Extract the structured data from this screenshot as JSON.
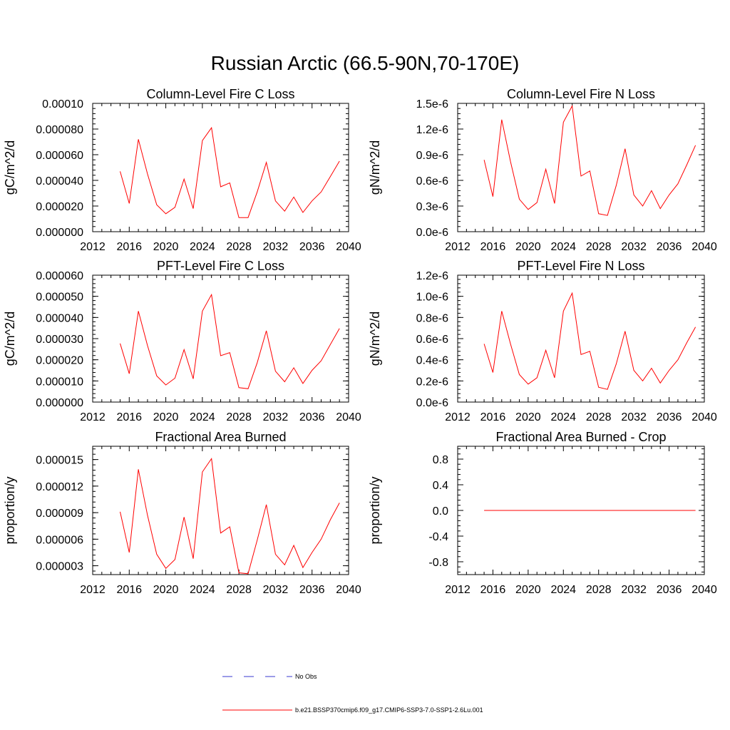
{
  "figure": {
    "title": "Russian Arctic (66.5-90N,70-170E)"
  },
  "legend": {
    "entries": [
      {
        "label": "No Obs",
        "style": "dashed",
        "color": "#3a3ad0"
      },
      {
        "label": "b.e21.BSSP370cmip6.f09_g17.CMIP6-SSP3-7.0-SSP1-2.6Lu.001",
        "style": "solid",
        "color": "#ff0000"
      }
    ]
  },
  "chart_data": [
    {
      "type": "line",
      "title": "Column-Level Fire C Loss",
      "ylabel": "gC/m^2/d",
      "xlim": [
        2012,
        2040
      ],
      "ylim": [
        0,
        0.0001
      ],
      "xticks": [
        "2012",
        "2016",
        "2020",
        "2024",
        "2028",
        "2032",
        "2036",
        "2040"
      ],
      "yticks": [
        {
          "v": 0,
          "label": "0.000000"
        },
        {
          "v": 2e-05,
          "label": "0.000020"
        },
        {
          "v": 4e-05,
          "label": "0.000040"
        },
        {
          "v": 6e-05,
          "label": "0.000060"
        },
        {
          "v": 8e-05,
          "label": "0.000080"
        },
        {
          "v": 0.0001,
          "label": "0.00010"
        }
      ],
      "series": [
        {
          "color": "#ff0000",
          "x": [
            2015,
            2016,
            2017,
            2018,
            2019,
            2020,
            2021,
            2022,
            2023,
            2024,
            2025,
            2026,
            2027,
            2028,
            2029,
            2030,
            2031,
            2032,
            2033,
            2034,
            2035,
            2036,
            2037,
            2038,
            2039
          ],
          "y": [
            4.7e-05,
            2.2e-05,
            7.2e-05,
            4.5e-05,
            2.1e-05,
            1.4e-05,
            1.9e-05,
            4.1e-05,
            1.8e-05,
            7.1e-05,
            8.1e-05,
            3.5e-05,
            3.8e-05,
            1.1e-05,
            1.1e-05,
            3.1e-05,
            5.4e-05,
            2.4e-05,
            1.6e-05,
            2.7e-05,
            1.5e-05,
            2.4e-05,
            3.1e-05,
            4.3e-05,
            5.5e-05
          ]
        }
      ]
    },
    {
      "type": "line",
      "title": "Column-Level Fire N Loss",
      "ylabel": "gN/m^2/d",
      "xlim": [
        2012,
        2040
      ],
      "ylim": [
        0,
        1.5e-06
      ],
      "xticks": [
        "2012",
        "2016",
        "2020",
        "2024",
        "2028",
        "2032",
        "2036",
        "2040"
      ],
      "yticks": [
        {
          "v": 0,
          "label": "0.0e-6"
        },
        {
          "v": 3e-07,
          "label": "0.3e-6"
        },
        {
          "v": 6e-07,
          "label": "0.6e-6"
        },
        {
          "v": 9e-07,
          "label": "0.9e-6"
        },
        {
          "v": 1.2e-06,
          "label": "1.2e-6"
        },
        {
          "v": 1.5e-06,
          "label": "1.5e-6"
        }
      ],
      "series": [
        {
          "color": "#ff0000",
          "x": [
            2015,
            2016,
            2017,
            2018,
            2019,
            2020,
            2021,
            2022,
            2023,
            2024,
            2025,
            2026,
            2027,
            2028,
            2029,
            2030,
            2031,
            2032,
            2033,
            2034,
            2035,
            2036,
            2037,
            2038,
            2039
          ],
          "y": [
            8.4e-07,
            4.1e-07,
            1.31e-06,
            8.2e-07,
            3.8e-07,
            2.6e-07,
            3.4e-07,
            7.3e-07,
            3.3e-07,
            1.28e-06,
            1.47e-06,
            6.5e-07,
            7.1e-07,
            2.1e-07,
            1.9e-07,
            5.4e-07,
            9.7e-07,
            4.3e-07,
            3e-07,
            4.8e-07,
            2.7e-07,
            4.3e-07,
            5.6e-07,
            7.8e-07,
            1.01e-06
          ]
        }
      ]
    },
    {
      "type": "line",
      "title": "PFT-Level Fire C Loss",
      "ylabel": "gC/m^2/d",
      "xlim": [
        2012,
        2040
      ],
      "ylim": [
        0,
        6e-05
      ],
      "xticks": [
        "2012",
        "2016",
        "2020",
        "2024",
        "2028",
        "2032",
        "2036",
        "2040"
      ],
      "yticks": [
        {
          "v": 0,
          "label": "0.000000"
        },
        {
          "v": 1e-05,
          "label": "0.000010"
        },
        {
          "v": 2e-05,
          "label": "0.000020"
        },
        {
          "v": 3e-05,
          "label": "0.000030"
        },
        {
          "v": 4e-05,
          "label": "0.000040"
        },
        {
          "v": 5e-05,
          "label": "0.000050"
        },
        {
          "v": 6e-05,
          "label": "0.000060"
        }
      ],
      "series": [
        {
          "color": "#ff0000",
          "x": [
            2015,
            2016,
            2017,
            2018,
            2019,
            2020,
            2021,
            2022,
            2023,
            2024,
            2025,
            2026,
            2027,
            2028,
            2029,
            2030,
            2031,
            2032,
            2033,
            2034,
            2035,
            2036,
            2037,
            2038,
            2039
          ],
          "y": [
            2.77e-05,
            1.34e-05,
            4.3e-05,
            2.67e-05,
            1.24e-05,
            8.1e-06,
            1.13e-05,
            2.48e-05,
            1.1e-05,
            4.3e-05,
            5.08e-05,
            2.19e-05,
            2.34e-05,
            6.8e-06,
            6.3e-06,
            1.86e-05,
            3.37e-05,
            1.46e-05,
            9.6e-06,
            1.62e-05,
            8.8e-06,
            1.5e-05,
            1.95e-05,
            2.72e-05,
            3.48e-05
          ]
        }
      ]
    },
    {
      "type": "line",
      "title": "PFT-Level Fire N Loss",
      "ylabel": "gN/m^2/d",
      "xlim": [
        2012,
        2040
      ],
      "ylim": [
        0,
        1.2e-06
      ],
      "xticks": [
        "2012",
        "2016",
        "2020",
        "2024",
        "2028",
        "2032",
        "2036",
        "2040"
      ],
      "yticks": [
        {
          "v": 0,
          "label": "0.0e-6"
        },
        {
          "v": 2e-07,
          "label": "0.2e-6"
        },
        {
          "v": 4e-07,
          "label": "0.4e-6"
        },
        {
          "v": 6e-07,
          "label": "0.6e-6"
        },
        {
          "v": 8e-07,
          "label": "0.8e-6"
        },
        {
          "v": 1e-06,
          "label": "1.0e-6"
        },
        {
          "v": 1.2e-06,
          "label": "1.2e-6"
        }
      ],
      "series": [
        {
          "color": "#ff0000",
          "x": [
            2015,
            2016,
            2017,
            2018,
            2019,
            2020,
            2021,
            2022,
            2023,
            2024,
            2025,
            2026,
            2027,
            2028,
            2029,
            2030,
            2031,
            2032,
            2033,
            2034,
            2035,
            2036,
            2037,
            2038,
            2039
          ],
          "y": [
            5.5e-07,
            2.8e-07,
            8.6e-07,
            5.5e-07,
            2.6e-07,
            1.7e-07,
            2.3e-07,
            4.9e-07,
            2.3e-07,
            8.6e-07,
            1.03e-06,
            4.5e-07,
            4.8e-07,
            1.4e-07,
            1.2e-07,
            3.6e-07,
            6.7e-07,
            3e-07,
            2e-07,
            3.2e-07,
            1.8e-07,
            3e-07,
            4e-07,
            5.6e-07,
            7.1e-07
          ]
        }
      ]
    },
    {
      "type": "line",
      "title": "Fractional Area Burned",
      "ylabel": "proportion/y",
      "xlim": [
        2012,
        2040
      ],
      "ylim": [
        2e-06,
        1.65e-05
      ],
      "xticks": [
        "2012",
        "2016",
        "2020",
        "2024",
        "2028",
        "2032",
        "2036",
        "2040"
      ],
      "yticks": [
        {
          "v": 3e-06,
          "label": "0.000003"
        },
        {
          "v": 6e-06,
          "label": "0.000006"
        },
        {
          "v": 9e-06,
          "label": "0.000009"
        },
        {
          "v": 1.2e-05,
          "label": "0.000012"
        },
        {
          "v": 1.5e-05,
          "label": "0.000015"
        }
      ],
      "series": [
        {
          "color": "#ff0000",
          "x": [
            2015,
            2016,
            2017,
            2018,
            2019,
            2020,
            2021,
            2022,
            2023,
            2024,
            2025,
            2026,
            2027,
            2028,
            2029,
            2030,
            2031,
            2032,
            2033,
            2034,
            2035,
            2036,
            2037,
            2038,
            2039
          ],
          "y": [
            9.1e-06,
            4.5e-06,
            1.39e-05,
            8.7e-06,
            4.3e-06,
            2.7e-06,
            3.7e-06,
            8.5e-06,
            3.8e-06,
            1.36e-05,
            1.51e-05,
            6.7e-06,
            7.4e-06,
            2.2e-06,
            2.1e-06,
            5.9e-06,
            9.9e-06,
            4.3e-06,
            3.1e-06,
            5.3e-06,
            2.8e-06,
            4.5e-06,
            6e-06,
            8.2e-06,
            1.01e-05
          ]
        }
      ]
    },
    {
      "type": "line",
      "title": "Fractional Area Burned - Crop",
      "ylabel": "proportion/y",
      "xlim": [
        2012,
        2040
      ],
      "ylim": [
        -1,
        1
      ],
      "xticks": [
        "2012",
        "2016",
        "2020",
        "2024",
        "2028",
        "2032",
        "2036",
        "2040"
      ],
      "yticks": [
        {
          "v": -0.8,
          "label": "-0.8"
        },
        {
          "v": -0.4,
          "label": "-0.4"
        },
        {
          "v": 0,
          "label": "0.0"
        },
        {
          "v": 0.4,
          "label": "0.4"
        },
        {
          "v": 0.8,
          "label": "0.8"
        }
      ],
      "series": [
        {
          "color": "#ff0000",
          "x": [
            2015,
            2016,
            2017,
            2018,
            2019,
            2020,
            2021,
            2022,
            2023,
            2024,
            2025,
            2026,
            2027,
            2028,
            2029,
            2030,
            2031,
            2032,
            2033,
            2034,
            2035,
            2036,
            2037,
            2038,
            2039
          ],
          "y": [
            0,
            0,
            0,
            0,
            0,
            0,
            0,
            0,
            0,
            0,
            0,
            0,
            0,
            0,
            0,
            0,
            0,
            0,
            0,
            0,
            0,
            0,
            0,
            0,
            0
          ]
        }
      ]
    }
  ]
}
